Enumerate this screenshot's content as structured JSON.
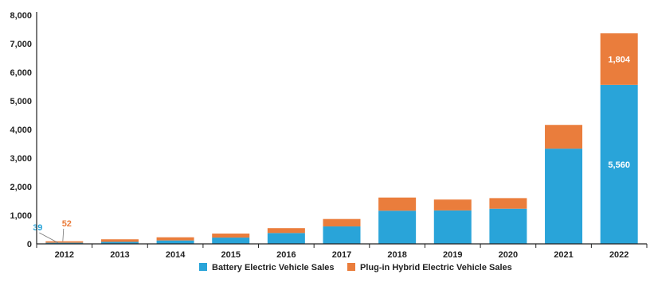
{
  "colors": {
    "bev": "#29A4D9",
    "phev": "#EA7D3C",
    "axis": "#222222",
    "grid": "#e6e6e6",
    "label_bev_outer": "#29A4D9",
    "label_phev_outer": "#EA7D3C"
  },
  "chart_data": {
    "type": "bar",
    "stacked": true,
    "categories": [
      "2012",
      "2013",
      "2014",
      "2015",
      "2016",
      "2017",
      "2018",
      "2019",
      "2020",
      "2021",
      "2022"
    ],
    "series": [
      {
        "name": "Battery Electric Vehicle Sales",
        "color": "#29A4D9",
        "values": [
          39,
          70,
          120,
          220,
          380,
          610,
          1160,
          1170,
          1230,
          3330,
          5560
        ]
      },
      {
        "name": "Plug-in Hybrid Electric Vehicle Sales",
        "color": "#EA7D3C",
        "values": [
          52,
          90,
          110,
          140,
          170,
          260,
          460,
          380,
          370,
          830,
          1804
        ]
      }
    ],
    "y_ticks": [
      "0",
      "1,000",
      "2,000",
      "3,000",
      "4,000",
      "5,000",
      "6,000",
      "7,000",
      "8,000"
    ],
    "ylim": [
      0,
      8000
    ],
    "grid": false,
    "legend_position": "bottom",
    "data_labels": [
      {
        "text": "39",
        "category": "2012",
        "series": 0,
        "placement": "outside-left"
      },
      {
        "text": "52",
        "category": "2012",
        "series": 1,
        "placement": "outside-above"
      },
      {
        "text": "5,560",
        "category": "2022",
        "series": 0,
        "placement": "inside"
      },
      {
        "text": "1,804",
        "category": "2022",
        "series": 1,
        "placement": "inside"
      }
    ],
    "title": "",
    "xlabel": "",
    "ylabel": ""
  }
}
